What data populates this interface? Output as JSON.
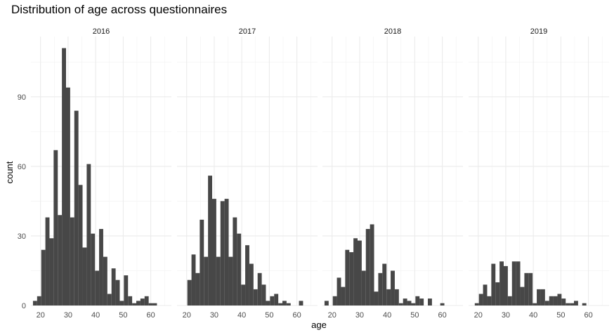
{
  "chart_data": {
    "type": "bar",
    "title": "Distribution of age across questionnaires",
    "xlabel": "age",
    "ylabel": "count",
    "xlim": [
      16.5,
      67.5
    ],
    "ylim": [
      0,
      116
    ],
    "x_ticks": [
      20,
      30,
      40,
      50,
      60
    ],
    "y_ticks": [
      0,
      30,
      60,
      90
    ],
    "bin_width": 1.5,
    "bin_start": 17.25,
    "grid": true,
    "bar_color": "#474747",
    "panels": [
      {
        "name": "2016",
        "values": [
          2,
          4,
          24,
          38,
          29,
          67,
          39,
          111,
          94,
          38,
          84,
          52,
          25,
          61,
          31,
          15,
          33,
          21,
          5,
          16,
          11,
          2,
          13,
          4,
          1,
          2,
          3,
          4,
          1,
          1
        ]
      },
      {
        "name": "2017",
        "values": [
          0,
          0,
          11,
          22,
          14,
          37,
          21,
          56,
          46,
          21,
          45,
          46,
          21,
          38,
          31,
          9,
          26,
          18,
          7,
          14,
          9,
          2,
          4,
          5,
          1,
          2,
          1,
          0,
          0,
          2
        ]
      },
      {
        "name": "2018",
        "values": [
          2,
          0,
          4,
          12,
          8,
          24,
          23,
          29,
          28,
          15,
          33,
          35,
          6,
          14,
          18,
          7,
          15,
          7,
          1,
          3,
          2,
          1,
          4,
          3,
          0,
          3,
          0,
          0,
          1,
          0
        ]
      },
      {
        "name": "2019",
        "values": [
          0,
          1,
          5,
          9,
          4,
          18,
          10,
          19,
          17,
          4,
          19,
          19,
          8,
          14,
          14,
          1,
          7,
          7,
          2,
          4,
          4,
          5,
          3,
          1,
          1,
          2,
          0,
          1,
          0,
          0
        ]
      }
    ]
  }
}
